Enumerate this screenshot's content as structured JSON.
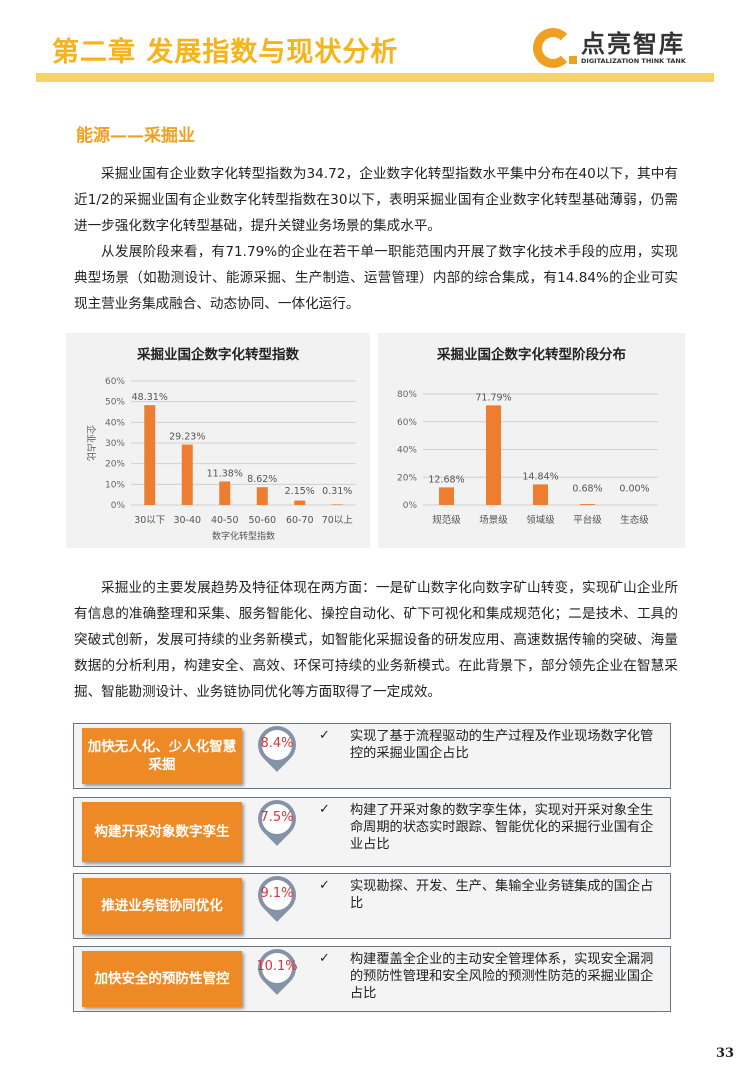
{
  "header": {
    "chapter_title": "第二章  发展指数与现状分析",
    "logo_cn": "点亮智库",
    "logo_en": "DIGITALIZATION THINK TANK"
  },
  "section_title": "能源——采掘业",
  "paragraphs": [
    "采掘业国有企业数字化转型指数为34.72，企业数字化转型指数水平集中分布在40以下，其中有近1/2的采掘业国有企业数字化转型指数在30以下，表明采掘业国有企业数字化转型基础薄弱，仍需进一步强化数字化转型基础，提升关键业务场景的集成水平。",
    "从发展阶段来看，有71.79%的企业在若干单一职能范围内开展了数字化技术手段的应用，实现典型场景（如勘测设计、能源采掘、生产制造、运营管理）内部的综合集成，有14.84%的企业可实现主营业务集成融合、动态协同、一体化运行。",
    "采掘业的主要发展趋势及特征体现在两方面：一是矿山数字化向数字矿山转变，实现矿山企业所有信息的准确整理和采集、服务智能化、操控自动化、矿下可视化和集成规范化；二是技术、工具的突破式创新，发展可持续的业务新模式，如智能化采掘设备的研发应用、高速数据传输的突破、海量数据的分析利用，构建安全、高效、环保可持续的业务新模式。在此背景下，部分领先企业在智慧采掘、智能勘测设计、业务链协同优化等方面取得了一定成效。"
  ],
  "chart_data": [
    {
      "type": "bar",
      "title": "采掘业国企数字化转型指数",
      "xlabel": "数字化转型指数",
      "ylabel": "企业占比",
      "categories": [
        "30以下",
        "30-40",
        "40-50",
        "50-60",
        "60-70",
        "70以上"
      ],
      "values": [
        48.31,
        29.23,
        11.38,
        8.62,
        2.15,
        0.31
      ],
      "labels": [
        "48.31%",
        "29.23%",
        "11.38%",
        "8.62%",
        "2.15%",
        "0.31%"
      ],
      "ylim": [
        0,
        60
      ],
      "yticks": [
        "0%",
        "10%",
        "20%",
        "30%",
        "40%",
        "50%",
        "60%"
      ],
      "grid": true,
      "color": "#ed7d31"
    },
    {
      "type": "bar",
      "title": "采掘业国企数字化转型阶段分布",
      "categories": [
        "规范级",
        "场景级",
        "领域级",
        "平台级",
        "生态级"
      ],
      "values": [
        12.68,
        71.79,
        14.84,
        0.68,
        0.0
      ],
      "labels": [
        "12.68%",
        "71.79%",
        "14.84%",
        "0.68%",
        "0.00%"
      ],
      "ylim": [
        0,
        80
      ],
      "yticks": [
        "0%",
        "20%",
        "40%",
        "60%",
        "80%"
      ],
      "grid": true,
      "color": "#ed7d31"
    }
  ],
  "items": [
    {
      "label": "加快无人化、少人化智慧采掘",
      "pct": "8.4%",
      "check": "✓",
      "desc": "实现了基于流程驱动的生产过程及作业现场数字化管控的采掘业国企占比"
    },
    {
      "label": "构建开采对象数字孪生",
      "pct": "7.5%",
      "check": "✓",
      "desc": "构建了开采对象的数字孪生体，实现对开采对象全生命周期的状态实时跟踪、智能优化的采掘行业国有企业占比"
    },
    {
      "label": "推进业务链协同优化",
      "pct": "9.1%",
      "check": "✓",
      "desc": "实现勘探、开发、生产、集输全业务链集成的国企占比"
    },
    {
      "label": "加快安全的预防性管控",
      "pct": "10.1%",
      "check": "✓",
      "desc": "构建覆盖全企业的主动安全管理体系，实现安全漏洞的预防性管理和安全风险的预测性防范的采掘业国企占比"
    }
  ],
  "page_number": "33"
}
